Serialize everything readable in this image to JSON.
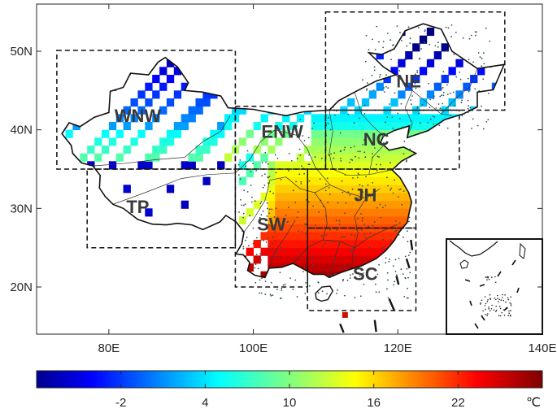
{
  "map": {
    "lon_range": [
      70,
      140
    ],
    "lat_range": [
      14,
      56
    ],
    "x_ticks": [
      {
        "value": 80,
        "label": "80E"
      },
      {
        "value": 100,
        "label": "100E"
      },
      {
        "value": 120,
        "label": "120E"
      },
      {
        "value": 140,
        "label": "140E"
      }
    ],
    "y_ticks": [
      {
        "value": 20,
        "label": "20N"
      },
      {
        "value": 30,
        "label": "30N"
      },
      {
        "value": 40,
        "label": "40N"
      },
      {
        "value": 50,
        "label": "50N"
      }
    ],
    "regions": [
      {
        "label": "WNW",
        "lon": [
          72.8,
          97.5
        ],
        "lat": [
          35.0,
          50.1
        ],
        "label_lon": 84.0,
        "label_lat": 41.6
      },
      {
        "label": "TP",
        "lon": [
          77.0,
          97.5
        ],
        "lat": [
          25.0,
          35.0
        ],
        "label_lon": 84.0,
        "label_lat": 30.0
      },
      {
        "label": "ENW",
        "lon": [
          97.5,
          110.0
        ],
        "lat": [
          35.0,
          43.0
        ],
        "label_lon": 104.0,
        "label_lat": 39.6
      },
      {
        "label": "NC",
        "lon": [
          110.0,
          128.5
        ],
        "lat": [
          35.0,
          42.5
        ],
        "label_lon": 117.0,
        "label_lat": 38.6
      },
      {
        "label": "NE",
        "lon": [
          110.0,
          134.8
        ],
        "lat": [
          42.5,
          55.0
        ],
        "label_lon": 121.5,
        "label_lat": 46.0
      },
      {
        "label": "SW",
        "lon": [
          97.5,
          107.5
        ],
        "lat": [
          20.0,
          35.0
        ],
        "label_lon": 102.5,
        "label_lat": 27.8
      },
      {
        "label": "JH",
        "lon": [
          107.5,
          122.5
        ],
        "lat": [
          27.5,
          35.0
        ],
        "label_lon": 115.5,
        "label_lat": 31.5
      },
      {
        "label": "SC",
        "lon": [
          107.5,
          122.5
        ],
        "lat": [
          17.0,
          27.5
        ],
        "label_lon": 115.5,
        "label_lat": 21.5
      }
    ]
  },
  "colorbar": {
    "vmin": -8,
    "vmax": 28,
    "ticks": [
      -2,
      4,
      10,
      16,
      22
    ],
    "tick_labels": [
      "-2",
      "4",
      "10",
      "16",
      "22"
    ],
    "unit": "℃",
    "colormap": "jet"
  }
}
